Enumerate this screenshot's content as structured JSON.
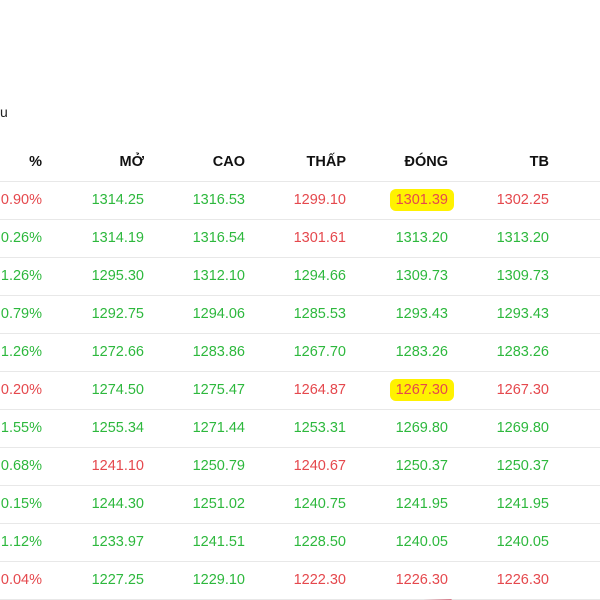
{
  "fragment_text": "u",
  "table": {
    "headers": {
      "pct": "%",
      "open": "MỞ",
      "high": "CAO",
      "low": "THẤP",
      "close": "ĐÓNG",
      "avg": "TB"
    },
    "rows": [
      {
        "pct": "0.90%",
        "open": "1314.25",
        "high": "1316.53",
        "low": "1299.10",
        "close": "1301.39",
        "avg": "1302.25"
      },
      {
        "pct": "0.26%",
        "open": "1314.19",
        "high": "1316.54",
        "low": "1301.61",
        "close": "1313.20",
        "avg": "1313.20"
      },
      {
        "pct": "1.26%",
        "open": "1295.30",
        "high": "1312.10",
        "low": "1294.66",
        "close": "1309.73",
        "avg": "1309.73"
      },
      {
        "pct": "0.79%",
        "open": "1292.75",
        "high": "1294.06",
        "low": "1285.53",
        "close": "1293.43",
        "avg": "1293.43"
      },
      {
        "pct": "1.26%",
        "open": "1272.66",
        "high": "1283.86",
        "low": "1267.70",
        "close": "1283.26",
        "avg": "1283.26"
      },
      {
        "pct": "0.20%",
        "open": "1274.50",
        "high": "1275.47",
        "low": "1264.87",
        "close": "1267.30",
        "avg": "1267.30"
      },
      {
        "pct": "1.55%",
        "open": "1255.34",
        "high": "1271.44",
        "low": "1253.31",
        "close": "1269.80",
        "avg": "1269.80"
      },
      {
        "pct": "0.68%",
        "open": "1241.10",
        "high": "1250.79",
        "low": "1240.67",
        "close": "1250.37",
        "avg": "1250.37"
      },
      {
        "pct": "0.15%",
        "open": "1244.30",
        "high": "1251.02",
        "low": "1240.75",
        "close": "1241.95",
        "avg": "1241.95"
      },
      {
        "pct": "1.12%",
        "open": "1233.97",
        "high": "1241.51",
        "low": "1228.50",
        "close": "1240.05",
        "avg": "1240.05"
      },
      {
        "pct": "0.04%",
        "open": "1227.25",
        "high": "1229.10",
        "low": "1222.30",
        "close": "1226.30",
        "avg": "1226.30"
      }
    ],
    "colors": [
      {
        "pct": "down",
        "open": "up",
        "high": "up",
        "low": "down",
        "close": "down",
        "avg": "down"
      },
      {
        "pct": "up",
        "open": "up",
        "high": "up",
        "low": "down",
        "close": "up",
        "avg": "up"
      },
      {
        "pct": "up",
        "open": "up",
        "high": "up",
        "low": "up",
        "close": "up",
        "avg": "up"
      },
      {
        "pct": "up",
        "open": "up",
        "high": "up",
        "low": "up",
        "close": "up",
        "avg": "up"
      },
      {
        "pct": "up",
        "open": "up",
        "high": "up",
        "low": "up",
        "close": "up",
        "avg": "up"
      },
      {
        "pct": "down",
        "open": "up",
        "high": "up",
        "low": "down",
        "close": "down",
        "avg": "down"
      },
      {
        "pct": "up",
        "open": "up",
        "high": "up",
        "low": "up",
        "close": "up",
        "avg": "up"
      },
      {
        "pct": "up",
        "open": "down",
        "high": "up",
        "low": "down",
        "close": "up",
        "avg": "up"
      },
      {
        "pct": "up",
        "open": "up",
        "high": "up",
        "low": "up",
        "close": "up",
        "avg": "up"
      },
      {
        "pct": "up",
        "open": "up",
        "high": "up",
        "low": "up",
        "close": "up",
        "avg": "up"
      },
      {
        "pct": "down",
        "open": "up",
        "high": "up",
        "low": "down",
        "close": "down",
        "avg": "down"
      }
    ],
    "markup": {
      "highlighted_close_rows": [
        0,
        5
      ],
      "underlined_close_rows": [
        10
      ]
    }
  },
  "theme": {
    "up_color": "#2db83d",
    "down_color": "#e5484d",
    "highlight_color": "#fff200",
    "underline_color": "#c8102e"
  }
}
